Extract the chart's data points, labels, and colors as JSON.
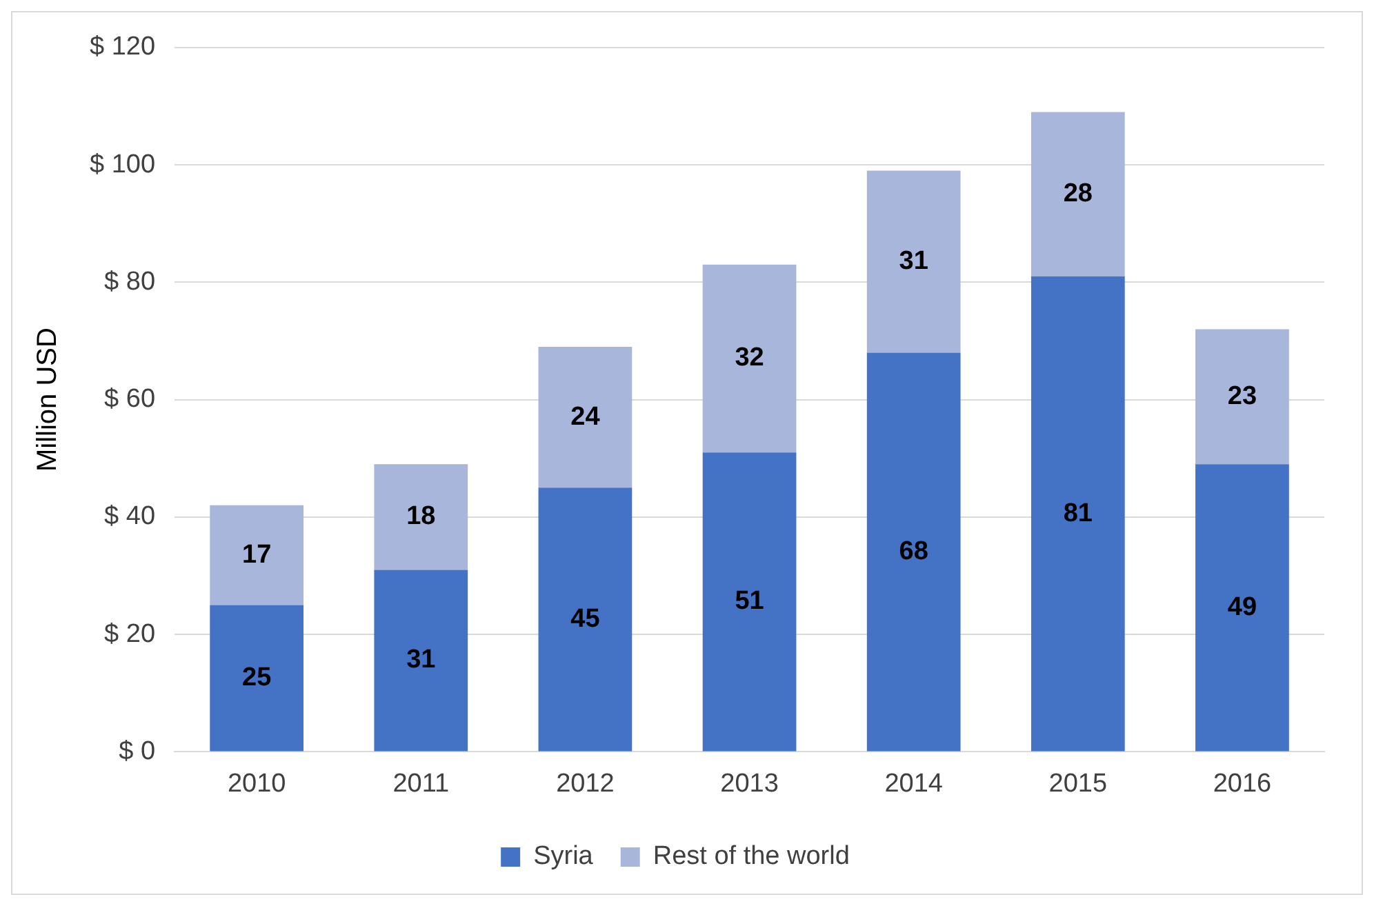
{
  "chart_data": {
    "type": "bar",
    "ylabel": "Million USD",
    "categories": [
      "2010",
      "2011",
      "2012",
      "2013",
      "2014",
      "2015",
      "2016"
    ],
    "stacked": true,
    "series": [
      {
        "name": "Syria",
        "color": "#4472c4",
        "values": [
          25,
          31,
          45,
          51,
          68,
          81,
          49
        ]
      },
      {
        "name": "Rest of the world",
        "color": "#a9b6dc",
        "values": [
          17,
          18,
          24,
          32,
          31,
          28,
          23
        ]
      }
    ],
    "ylim": [
      0,
      120
    ],
    "yticks": [
      {
        "value": 0,
        "label": "$ 0"
      },
      {
        "value": 20,
        "label": "$ 20"
      },
      {
        "value": 40,
        "label": "$ 40"
      },
      {
        "value": 60,
        "label": "$ 60"
      },
      {
        "value": 80,
        "label": "$ 80"
      },
      {
        "value": 100,
        "label": "$ 100"
      },
      {
        "value": 120,
        "label": "$ 120"
      }
    ],
    "grid": "y",
    "legend": "bottom",
    "data_labels": true
  }
}
